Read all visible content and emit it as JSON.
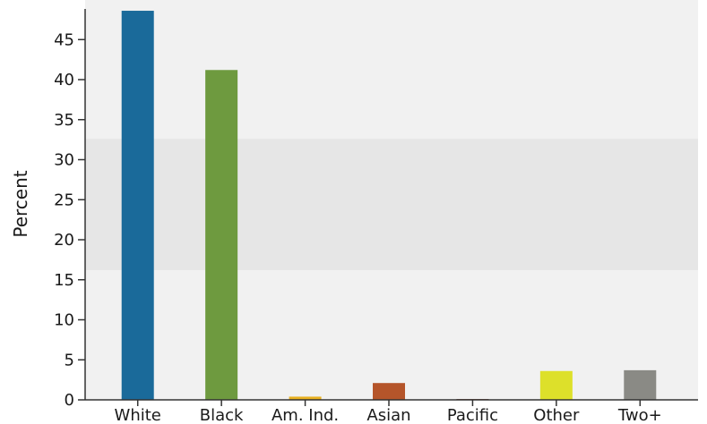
{
  "chart_data": {
    "type": "bar",
    "title": "",
    "xlabel": "",
    "ylabel": "Percent",
    "ylim": [
      0,
      48.5
    ],
    "yticks": [
      0,
      5,
      10,
      15,
      20,
      25,
      30,
      35,
      40,
      45
    ],
    "grid": false,
    "categories": [
      "White",
      "Black",
      "Am. Ind.",
      "Asian",
      "Pacific",
      "Other",
      "Two+"
    ],
    "values": [
      48.6,
      41.2,
      0.4,
      2.1,
      0.1,
      3.6,
      3.7
    ],
    "colors": [
      "#1a6a9a",
      "#6e9a3f",
      "#e8b020",
      "#b5552a",
      "#6a3a2a",
      "#dde02a",
      "#8a8a85"
    ],
    "background_bands": {
      "plot_background": "#f1f1f1",
      "band_color": "#e6e6e6",
      "band_range": [
        16.2,
        32.6
      ]
    }
  }
}
